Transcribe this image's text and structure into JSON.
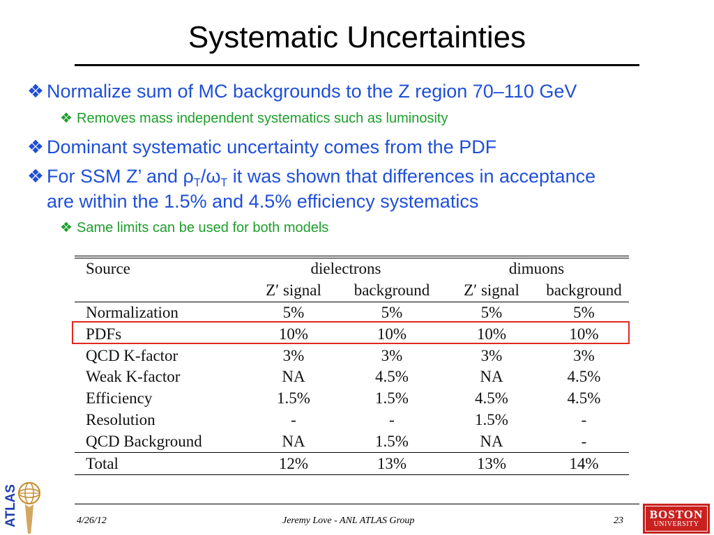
{
  "title": "Systematic Uncertainties",
  "bullets": {
    "b1": "Normalize sum of MC backgrounds to the Z region 70–110 GeV",
    "b1_sub": "Removes mass independent systematics such as luminosity",
    "b2": "Dominant systematic uncertainty comes from the PDF",
    "b3_pre": "For SSM Z’ and ρ",
    "b3_sub1": "T",
    "b3_mid": "/ω",
    "b3_sub2": "T",
    "b3_post": " it was shown that differences in acceptance",
    "b3_line2": "are within the 1.5% and 4.5% efficiency systematics",
    "b3_sub": "Same limits can be used for both models",
    "diamond": "❖"
  },
  "table": {
    "header_source": "Source",
    "group1": "dielectrons",
    "group2": "dimuons",
    "subheaders": [
      "Z′ signal",
      "background",
      "Z′ signal",
      "background"
    ],
    "rows": [
      {
        "source": "Normalization",
        "values": [
          "5%",
          "5%",
          "5%",
          "5%"
        ]
      },
      {
        "source": "PDFs",
        "values": [
          "10%",
          "10%",
          "10%",
          "10%"
        ]
      },
      {
        "source": "QCD K-factor",
        "values": [
          "3%",
          "3%",
          "3%",
          "3%"
        ]
      },
      {
        "source": "Weak K-factor",
        "values": [
          "NA",
          "4.5%",
          "NA",
          "4.5%"
        ]
      },
      {
        "source": "Efficiency",
        "values": [
          "1.5%",
          "1.5%",
          "4.5%",
          "4.5%"
        ]
      },
      {
        "source": "Resolution",
        "values": [
          "-",
          "-",
          "1.5%",
          "-"
        ]
      },
      {
        "source": "QCD Background",
        "values": [
          "NA",
          "1.5%",
          "NA",
          "-"
        ]
      }
    ],
    "total": {
      "source": "Total",
      "values": [
        "12%",
        "13%",
        "13%",
        "14%"
      ]
    }
  },
  "footer": {
    "date": "4/26/12",
    "author": "Jeremy Love - ANL ATLAS Group",
    "page": "23"
  },
  "logos": {
    "atlas": "ATLAS",
    "bu_line1": "BOSTON",
    "bu_line2": "UNIVERSITY"
  },
  "colors": {
    "bullet_blue": "#1f4fd8",
    "sub_green": "#1d9e2b",
    "highlight_red": "#e0281f"
  }
}
